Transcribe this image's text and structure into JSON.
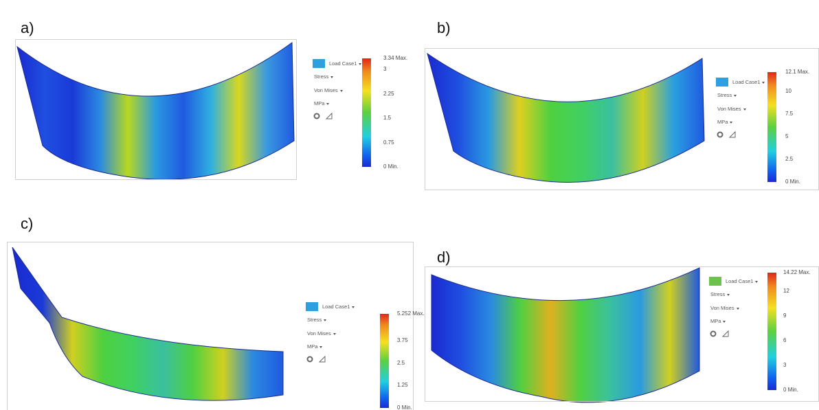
{
  "panels": [
    {
      "label": "a)",
      "legend": {
        "load_case": "Load Case1",
        "result": "Stress",
        "criterion": "Von Mises",
        "unit": "MPa",
        "scale": [
          "3.34 Max.",
          "3",
          "2.25",
          "1.5",
          "0.75",
          "0 Min."
        ]
      }
    },
    {
      "label": "b)",
      "legend": {
        "load_case": "Load Case1",
        "result": "Stress",
        "criterion": "Von Mises",
        "unit": "MPa",
        "scale": [
          "12.1 Max.",
          "10",
          "7.5",
          "5",
          "2.5",
          "0 Min."
        ]
      }
    },
    {
      "label": "c)",
      "legend": {
        "load_case": "Load Case1",
        "result": "Stress",
        "criterion": "Von Mises",
        "unit": "MPa",
        "scale": [
          "5.252 Max.",
          "3.75",
          "2.5",
          "1.25",
          "0 Min."
        ]
      }
    },
    {
      "label": "d)",
      "legend": {
        "load_case": "Load Case1",
        "result": "Stress",
        "criterion": "Von Mises",
        "unit": "MPa",
        "scale": [
          "14.22 Max.",
          "12",
          "9",
          "6",
          "3",
          "0 Min."
        ]
      }
    }
  ]
}
